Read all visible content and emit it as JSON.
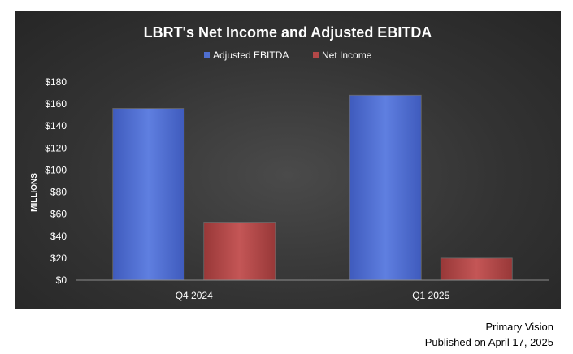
{
  "chart_data": {
    "type": "bar",
    "title": "LBRT's Net Income and Adjusted EBITDA",
    "ylabel": "MILLIONS",
    "xlabel": "",
    "categories": [
      "Q4 2024",
      "Q1 2025"
    ],
    "series": [
      {
        "name": "Adjusted EBITDA",
        "values": [
          156,
          168
        ],
        "color": "#4f6fd0"
      },
      {
        "name": "Net Income",
        "values": [
          52,
          20
        ],
        "color": "#b34848"
      }
    ],
    "ylim": [
      0,
      180
    ],
    "yticks": [
      0,
      20,
      40,
      60,
      80,
      100,
      120,
      140,
      160,
      180
    ],
    "ytick_labels": [
      "$0",
      "$20",
      "$40",
      "$60",
      "$80",
      "$100",
      "$120",
      "$140",
      "$160",
      "$180"
    ],
    "legend_position": "top",
    "grid": false,
    "background_color": "#333333"
  },
  "footer": {
    "source": "Primary Vision",
    "published": "Published on April 17, 2025"
  }
}
